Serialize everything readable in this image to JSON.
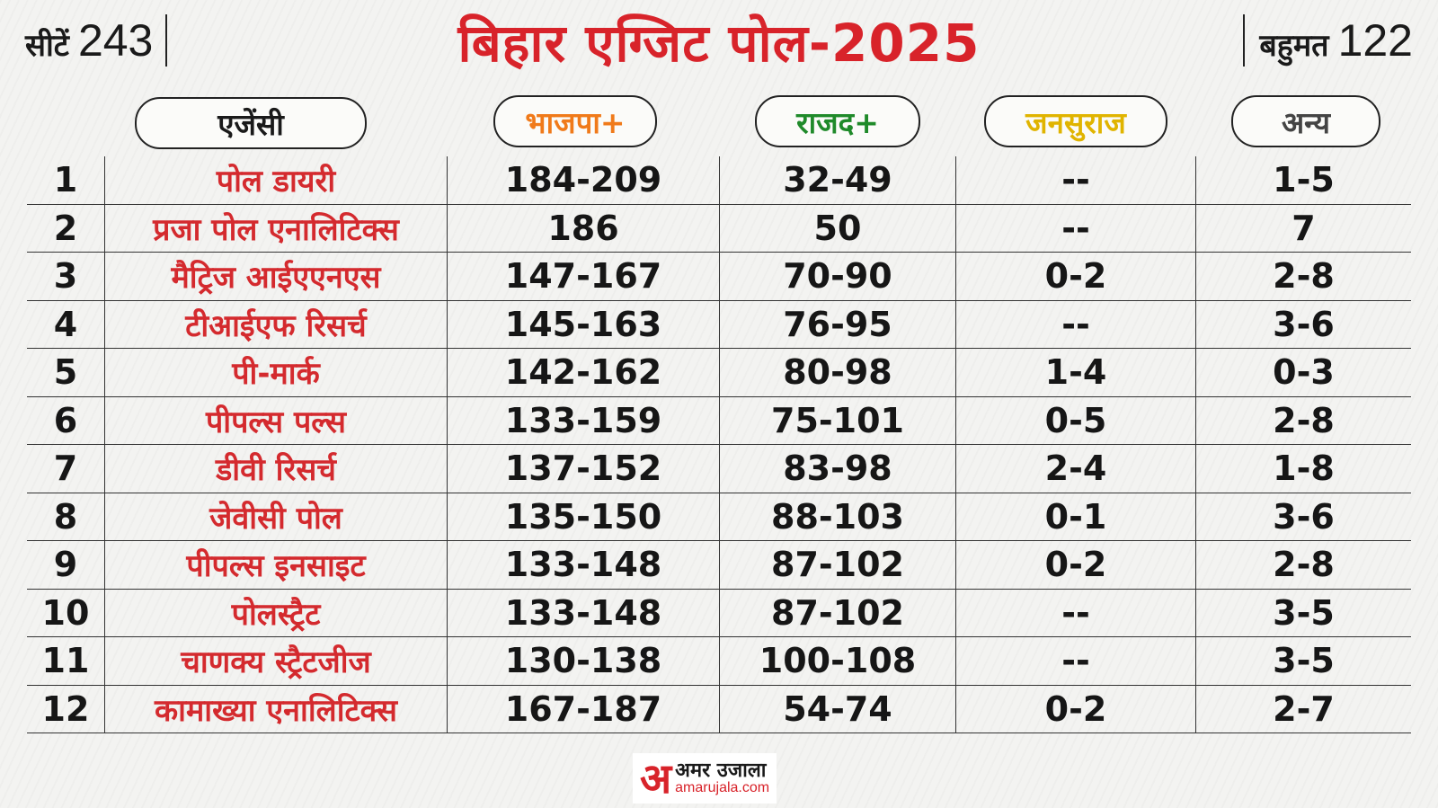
{
  "header": {
    "seats_label": "सीटें",
    "seats_value": "243",
    "title": "बिहार एग्जिट पोल-2025",
    "majority_label": "बहुमत",
    "majority_value": "122"
  },
  "columns": {
    "agency": "एजेंसी",
    "bjp": "भाजपा+",
    "rjd": "राजद+",
    "jansuraj": "जनसुराज",
    "others": "अन्य"
  },
  "colors": {
    "title": "#d8232a",
    "agency_text": "#d42a2e",
    "bjp": "#f07a1a",
    "rjd": "#1f8a2a",
    "jansuraj": "#e0b400",
    "others": "#444444"
  },
  "rows": [
    {
      "n": "1",
      "agency": "पोल डायरी",
      "bjp": "184-209",
      "rjd": "32-49",
      "jansuraj": "--",
      "others": "1-5"
    },
    {
      "n": "2",
      "agency": "प्रजा पोल एनालिटिक्स",
      "bjp": "186",
      "rjd": "50",
      "jansuraj": "--",
      "others": "7"
    },
    {
      "n": "3",
      "agency": "मैट्रिज आईएएनएस",
      "bjp": "147-167",
      "rjd": "70-90",
      "jansuraj": "0-2",
      "others": "2-8"
    },
    {
      "n": "4",
      "agency": "टीआईएफ रिसर्च",
      "bjp": "145-163",
      "rjd": "76-95",
      "jansuraj": "--",
      "others": "3-6"
    },
    {
      "n": "5",
      "agency": "पी-मार्क",
      "bjp": "142-162",
      "rjd": "80-98",
      "jansuraj": "1-4",
      "others": "0-3"
    },
    {
      "n": "6",
      "agency": "पीपल्स पल्स",
      "bjp": "133-159",
      "rjd": "75-101",
      "jansuraj": "0-5",
      "others": "2-8"
    },
    {
      "n": "7",
      "agency": "डीवी रिसर्च",
      "bjp": "137-152",
      "rjd": "83-98",
      "jansuraj": "2-4",
      "others": "1-8"
    },
    {
      "n": "8",
      "agency": "जेवीसी पोल",
      "bjp": "135-150",
      "rjd": "88-103",
      "jansuraj": "0-1",
      "others": "3-6"
    },
    {
      "n": "9",
      "agency": "पीपल्स इनसाइट",
      "bjp": "133-148",
      "rjd": "87-102",
      "jansuraj": "0-2",
      "others": "2-8"
    },
    {
      "n": "10",
      "agency": "पोलस्ट्रैट",
      "bjp": "133-148",
      "rjd": "87-102",
      "jansuraj": "--",
      "others": "3-5"
    },
    {
      "n": "11",
      "agency": "चाणक्य स्ट्रैटजीज",
      "bjp": "130-138",
      "rjd": "100-108",
      "jansuraj": "--",
      "others": "3-5"
    },
    {
      "n": "12",
      "agency": "कामाख्या एनालिटिक्स",
      "bjp": "167-187",
      "rjd": "54-74",
      "jansuraj": "0-2",
      "others": "2-7"
    }
  ],
  "footer": {
    "logo_mark": "अ",
    "logo_hindi": "अमर उजाला",
    "logo_site": "amarujala.com"
  }
}
